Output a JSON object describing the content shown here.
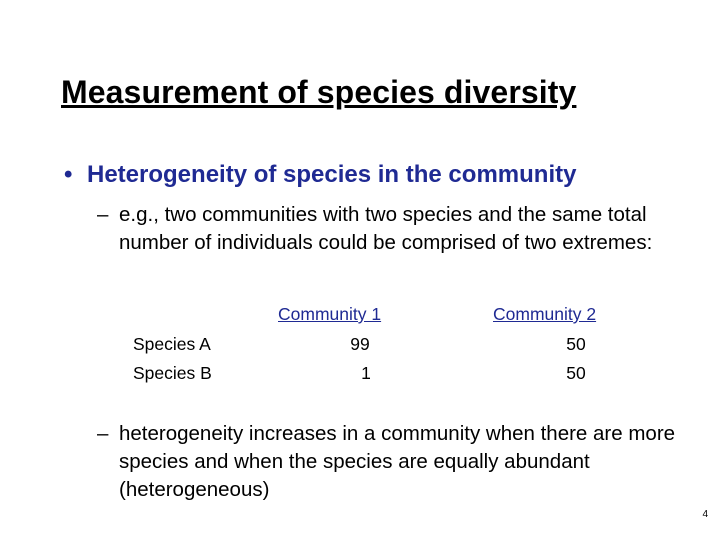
{
  "slide": {
    "title": "Measurement of species diversity",
    "bullet_marker": "•",
    "bullet": "Heterogeneity of species in the community",
    "dash_marker": "–",
    "sub_points": [
      "e.g., two communities with two species and the same total number of individuals could be comprised of two extremes:",
      "heterogeneity increases in a community when there are more species and when the species are equally abundant (heterogeneous)"
    ],
    "table": {
      "columns": [
        "Community 1",
        "Community 2"
      ],
      "rows": [
        {
          "label": "Species A",
          "values": [
            "99",
            "50"
          ]
        },
        {
          "label": "Species B",
          "values": [
            "1",
            "50"
          ]
        }
      ]
    },
    "page_number": "4",
    "colors": {
      "bullet": "#1f2a93",
      "column_header": "#1f2a93",
      "text": "#000000"
    }
  }
}
